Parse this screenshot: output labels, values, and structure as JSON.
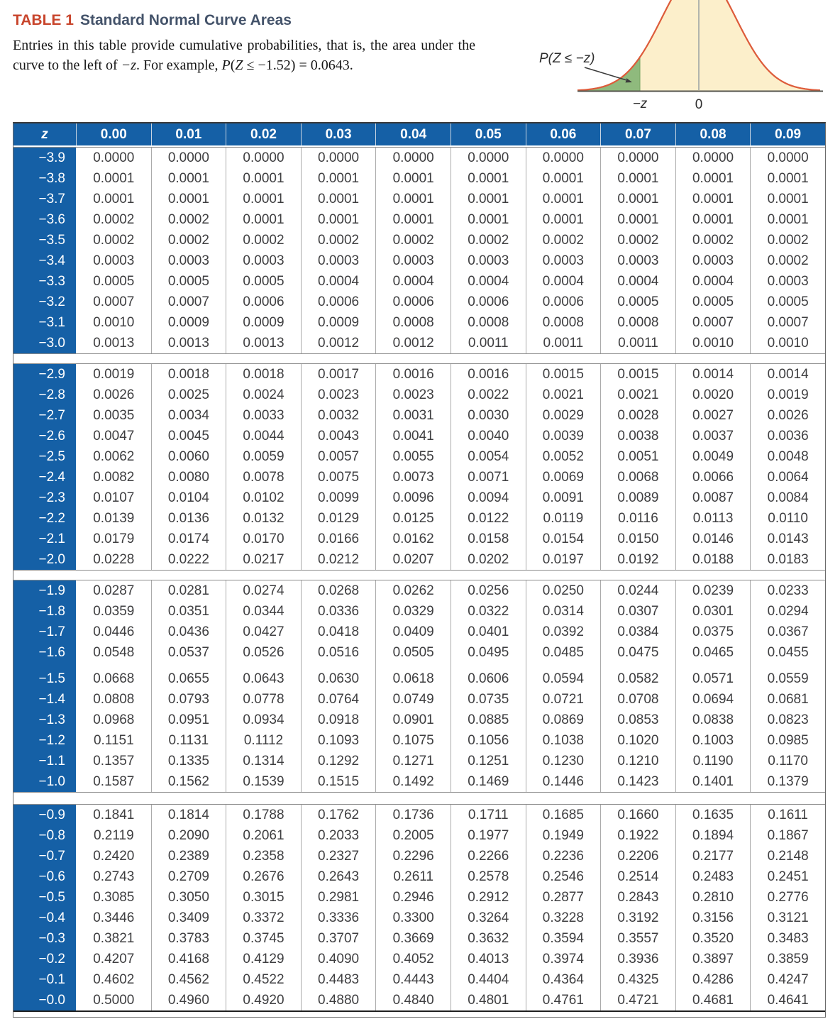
{
  "header": {
    "label": "TABLE 1",
    "title": "Standard Normal Curve Areas",
    "description_segments": [
      {
        "t": "Entries in this table provide cumulative probabilities, that is, the area under the curve to the left of ",
        "style": "normal"
      },
      {
        "t": "−z",
        "style": "italic"
      },
      {
        "t": ". For example, ",
        "style": "normal"
      },
      {
        "t": "P",
        "style": "italic"
      },
      {
        "t": "(",
        "style": "normal"
      },
      {
        "t": "Z",
        "style": "italic"
      },
      {
        "t": " ≤ −1.52) = 0.0643.",
        "style": "normal"
      }
    ]
  },
  "diagram": {
    "area_label": "P(Z ≤ −z)",
    "x_tick_left": "−z",
    "x_tick_right": "0"
  },
  "colors": {
    "header_blue": "#1560A6",
    "table_label_red": "#C8452C",
    "table_title_navy": "#44536A",
    "curve_stroke": "#DD5B3A",
    "curve_fill": "#FCEFCB",
    "shaded_green": "#8FBA7D",
    "shaded_green_edge": "#79A464",
    "cell_text": "#3E3E40"
  },
  "ztable": {
    "corner_header": "z",
    "columns": [
      "0.00",
      "0.01",
      "0.02",
      "0.03",
      "0.04",
      "0.05",
      "0.06",
      "0.07",
      "0.08",
      "0.09"
    ],
    "blocks": [
      {
        "rows": [
          {
            "z": "−3.9",
            "values": [
              "0.0000",
              "0.0000",
              "0.0000",
              "0.0000",
              "0.0000",
              "0.0000",
              "0.0000",
              "0.0000",
              "0.0000",
              "0.0000"
            ]
          },
          {
            "z": "−3.8",
            "values": [
              "0.0001",
              "0.0001",
              "0.0001",
              "0.0001",
              "0.0001",
              "0.0001",
              "0.0001",
              "0.0001",
              "0.0001",
              "0.0001"
            ]
          },
          {
            "z": "−3.7",
            "values": [
              "0.0001",
              "0.0001",
              "0.0001",
              "0.0001",
              "0.0001",
              "0.0001",
              "0.0001",
              "0.0001",
              "0.0001",
              "0.0001"
            ]
          },
          {
            "z": "−3.6",
            "values": [
              "0.0002",
              "0.0002",
              "0.0001",
              "0.0001",
              "0.0001",
              "0.0001",
              "0.0001",
              "0.0001",
              "0.0001",
              "0.0001"
            ]
          },
          {
            "z": "−3.5",
            "values": [
              "0.0002",
              "0.0002",
              "0.0002",
              "0.0002",
              "0.0002",
              "0.0002",
              "0.0002",
              "0.0002",
              "0.0002",
              "0.0002"
            ]
          },
          {
            "z": "−3.4",
            "values": [
              "0.0003",
              "0.0003",
              "0.0003",
              "0.0003",
              "0.0003",
              "0.0003",
              "0.0003",
              "0.0003",
              "0.0003",
              "0.0002"
            ]
          },
          {
            "z": "−3.3",
            "values": [
              "0.0005",
              "0.0005",
              "0.0005",
              "0.0004",
              "0.0004",
              "0.0004",
              "0.0004",
              "0.0004",
              "0.0004",
              "0.0003"
            ]
          },
          {
            "z": "−3.2",
            "values": [
              "0.0007",
              "0.0007",
              "0.0006",
              "0.0006",
              "0.0006",
              "0.0006",
              "0.0006",
              "0.0005",
              "0.0005",
              "0.0005"
            ]
          },
          {
            "z": "−3.1",
            "values": [
              "0.0010",
              "0.0009",
              "0.0009",
              "0.0009",
              "0.0008",
              "0.0008",
              "0.0008",
              "0.0008",
              "0.0007",
              "0.0007"
            ]
          },
          {
            "z": "−3.0",
            "values": [
              "0.0013",
              "0.0013",
              "0.0013",
              "0.0012",
              "0.0012",
              "0.0011",
              "0.0011",
              "0.0011",
              "0.0010",
              "0.0010"
            ]
          }
        ]
      },
      {
        "rows": [
          {
            "z": "−2.9",
            "values": [
              "0.0019",
              "0.0018",
              "0.0018",
              "0.0017",
              "0.0016",
              "0.0016",
              "0.0015",
              "0.0015",
              "0.0014",
              "0.0014"
            ]
          },
          {
            "z": "−2.8",
            "values": [
              "0.0026",
              "0.0025",
              "0.0024",
              "0.0023",
              "0.0023",
              "0.0022",
              "0.0021",
              "0.0021",
              "0.0020",
              "0.0019"
            ]
          },
          {
            "z": "−2.7",
            "values": [
              "0.0035",
              "0.0034",
              "0.0033",
              "0.0032",
              "0.0031",
              "0.0030",
              "0.0029",
              "0.0028",
              "0.0027",
              "0.0026"
            ]
          },
          {
            "z": "−2.6",
            "values": [
              "0.0047",
              "0.0045",
              "0.0044",
              "0.0043",
              "0.0041",
              "0.0040",
              "0.0039",
              "0.0038",
              "0.0037",
              "0.0036"
            ]
          },
          {
            "z": "−2.5",
            "values": [
              "0.0062",
              "0.0060",
              "0.0059",
              "0.0057",
              "0.0055",
              "0.0054",
              "0.0052",
              "0.0051",
              "0.0049",
              "0.0048"
            ]
          },
          {
            "z": "−2.4",
            "values": [
              "0.0082",
              "0.0080",
              "0.0078",
              "0.0075",
              "0.0073",
              "0.0071",
              "0.0069",
              "0.0068",
              "0.0066",
              "0.0064"
            ]
          },
          {
            "z": "−2.3",
            "values": [
              "0.0107",
              "0.0104",
              "0.0102",
              "0.0099",
              "0.0096",
              "0.0094",
              "0.0091",
              "0.0089",
              "0.0087",
              "0.0084"
            ]
          },
          {
            "z": "−2.2",
            "values": [
              "0.0139",
              "0.0136",
              "0.0132",
              "0.0129",
              "0.0125",
              "0.0122",
              "0.0119",
              "0.0116",
              "0.0113",
              "0.0110"
            ]
          },
          {
            "z": "−2.1",
            "values": [
              "0.0179",
              "0.0174",
              "0.0170",
              "0.0166",
              "0.0162",
              "0.0158",
              "0.0154",
              "0.0150",
              "0.0146",
              "0.0143"
            ]
          },
          {
            "z": "−2.0",
            "values": [
              "0.0228",
              "0.0222",
              "0.0217",
              "0.0212",
              "0.0207",
              "0.0202",
              "0.0197",
              "0.0192",
              "0.0188",
              "0.0183"
            ]
          }
        ]
      },
      {
        "rows": [
          {
            "z": "−1.9",
            "values": [
              "0.0287",
              "0.0281",
              "0.0274",
              "0.0268",
              "0.0262",
              "0.0256",
              "0.0250",
              "0.0244",
              "0.0239",
              "0.0233"
            ]
          },
          {
            "z": "−1.8",
            "values": [
              "0.0359",
              "0.0351",
              "0.0344",
              "0.0336",
              "0.0329",
              "0.0322",
              "0.0314",
              "0.0307",
              "0.0301",
              "0.0294"
            ]
          },
          {
            "z": "−1.7",
            "values": [
              "0.0446",
              "0.0436",
              "0.0427",
              "0.0418",
              "0.0409",
              "0.0401",
              "0.0392",
              "0.0384",
              "0.0375",
              "0.0367"
            ]
          },
          {
            "z": "−1.6",
            "values": [
              "0.0548",
              "0.0537",
              "0.0526",
              "0.0516",
              "0.0505",
              "0.0495",
              "0.0485",
              "0.0475",
              "0.0465",
              "0.0455"
            ]
          },
          {
            "z": "−1.5",
            "values": [
              "0.0668",
              "0.0655",
              "0.0643",
              "0.0630",
              "0.0618",
              "0.0606",
              "0.0594",
              "0.0582",
              "0.0571",
              "0.0559"
            ]
          },
          {
            "z": "−1.4",
            "values": [
              "0.0808",
              "0.0793",
              "0.0778",
              "0.0764",
              "0.0749",
              "0.0735",
              "0.0721",
              "0.0708",
              "0.0694",
              "0.0681"
            ]
          },
          {
            "z": "−1.3",
            "values": [
              "0.0968",
              "0.0951",
              "0.0934",
              "0.0918",
              "0.0901",
              "0.0885",
              "0.0869",
              "0.0853",
              "0.0838",
              "0.0823"
            ]
          },
          {
            "z": "−1.2",
            "values": [
              "0.1151",
              "0.1131",
              "0.1112",
              "0.1093",
              "0.1075",
              "0.1056",
              "0.1038",
              "0.1020",
              "0.1003",
              "0.0985"
            ]
          },
          {
            "z": "−1.1",
            "values": [
              "0.1357",
              "0.1335",
              "0.1314",
              "0.1292",
              "0.1271",
              "0.1251",
              "0.1230",
              "0.1210",
              "0.1190",
              "0.1170"
            ]
          },
          {
            "z": "−1.0",
            "values": [
              "0.1587",
              "0.1562",
              "0.1539",
              "0.1515",
              "0.1492",
              "0.1469",
              "0.1446",
              "0.1423",
              "0.1401",
              "0.1379"
            ]
          }
        ]
      },
      {
        "rows": [
          {
            "z": "−0.9",
            "values": [
              "0.1841",
              "0.1814",
              "0.1788",
              "0.1762",
              "0.1736",
              "0.1711",
              "0.1685",
              "0.1660",
              "0.1635",
              "0.1611"
            ]
          },
          {
            "z": "−0.8",
            "values": [
              "0.2119",
              "0.2090",
              "0.2061",
              "0.2033",
              "0.2005",
              "0.1977",
              "0.1949",
              "0.1922",
              "0.1894",
              "0.1867"
            ]
          },
          {
            "z": "−0.7",
            "values": [
              "0.2420",
              "0.2389",
              "0.2358",
              "0.2327",
              "0.2296",
              "0.2266",
              "0.2236",
              "0.2206",
              "0.2177",
              "0.2148"
            ]
          },
          {
            "z": "−0.6",
            "values": [
              "0.2743",
              "0.2709",
              "0.2676",
              "0.2643",
              "0.2611",
              "0.2578",
              "0.2546",
              "0.2514",
              "0.2483",
              "0.2451"
            ]
          },
          {
            "z": "−0.5",
            "values": [
              "0.3085",
              "0.3050",
              "0.3015",
              "0.2981",
              "0.2946",
              "0.2912",
              "0.2877",
              "0.2843",
              "0.2810",
              "0.2776"
            ]
          },
          {
            "z": "−0.4",
            "values": [
              "0.3446",
              "0.3409",
              "0.3372",
              "0.3336",
              "0.3300",
              "0.3264",
              "0.3228",
              "0.3192",
              "0.3156",
              "0.3121"
            ]
          },
          {
            "z": "−0.3",
            "values": [
              "0.3821",
              "0.3783",
              "0.3745",
              "0.3707",
              "0.3669",
              "0.3632",
              "0.3594",
              "0.3557",
              "0.3520",
              "0.3483"
            ]
          },
          {
            "z": "−0.2",
            "values": [
              "0.4207",
              "0.4168",
              "0.4129",
              "0.4090",
              "0.4052",
              "0.4013",
              "0.3974",
              "0.3936",
              "0.3897",
              "0.3859"
            ]
          },
          {
            "z": "−0.1",
            "values": [
              "0.4602",
              "0.4562",
              "0.4522",
              "0.4483",
              "0.4443",
              "0.4404",
              "0.4364",
              "0.4325",
              "0.4286",
              "0.4247"
            ]
          },
          {
            "z": "−0.0",
            "values": [
              "0.5000",
              "0.4960",
              "0.4920",
              "0.4880",
              "0.4840",
              "0.4801",
              "0.4761",
              "0.4721",
              "0.4681",
              "0.4641"
            ]
          }
        ]
      }
    ]
  }
}
